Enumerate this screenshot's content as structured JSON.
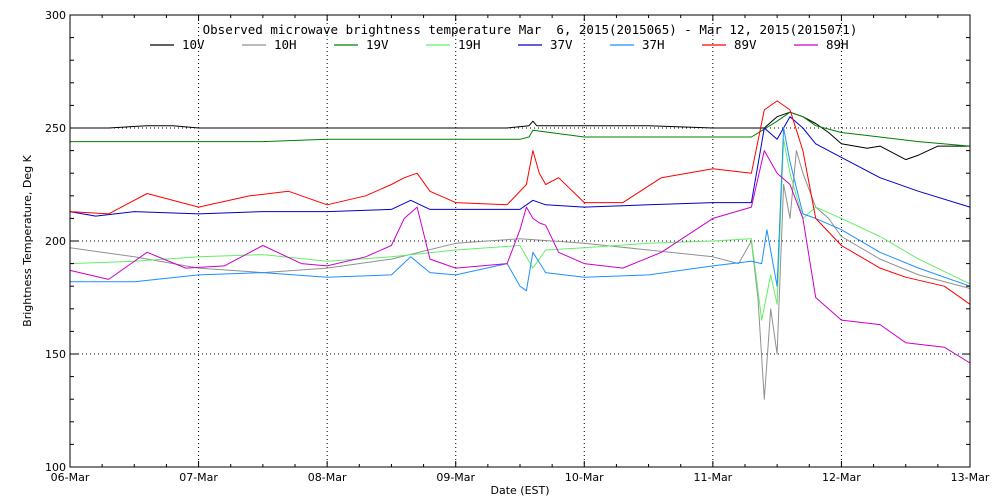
{
  "chart_data": {
    "type": "line",
    "title": "Observed microwave brightness temperature Mar  6, 2015(2015065) - Mar 12, 2015(2015071)",
    "xlabel": "Date (EST)",
    "ylabel": "Brightness Temperature, Deg K",
    "xlim": [
      0,
      7
    ],
    "ylim": [
      100,
      300
    ],
    "grid": true,
    "legend_position": "top",
    "xticks": [
      {
        "value": 0,
        "label": "06-Mar"
      },
      {
        "value": 1,
        "label": "07-Mar"
      },
      {
        "value": 2,
        "label": "08-Mar"
      },
      {
        "value": 3,
        "label": "09-Mar"
      },
      {
        "value": 4,
        "label": "10-Mar"
      },
      {
        "value": 5,
        "label": "11-Mar"
      },
      {
        "value": 6,
        "label": "12-Mar"
      },
      {
        "value": 7,
        "label": "13-Mar"
      }
    ],
    "yticks": [
      {
        "value": 100,
        "label": "100"
      },
      {
        "value": 150,
        "label": "150"
      },
      {
        "value": 200,
        "label": "200"
      },
      {
        "value": 250,
        "label": "250"
      },
      {
        "value": 300,
        "label": "300"
      }
    ],
    "series": [
      {
        "name": "10V",
        "color": "#000000",
        "x": [
          0,
          0.3,
          0.6,
          0.8,
          1.0,
          1.5,
          2.0,
          2.5,
          3.0,
          3.4,
          3.57,
          3.6,
          3.63,
          4.0,
          4.5,
          5.0,
          5.3,
          5.4,
          5.5,
          5.6,
          5.7,
          5.8,
          5.9,
          6.0,
          6.2,
          6.3,
          6.5,
          6.6,
          6.75,
          7.0
        ],
        "y": [
          250,
          250,
          251,
          251,
          250,
          250,
          250,
          250,
          250,
          250,
          251,
          253,
          251,
          251,
          251,
          250,
          250,
          250,
          255,
          257,
          255,
          252,
          248,
          243,
          241,
          242,
          236,
          238,
          242,
          242
        ]
      },
      {
        "name": "10H",
        "color": "#909090",
        "x": [
          0,
          0.5,
          1.0,
          1.5,
          2.0,
          2.5,
          3.0,
          3.5,
          4.0,
          4.5,
          5.0,
          5.2,
          5.3,
          5.35,
          5.4,
          5.45,
          5.5,
          5.55,
          5.6,
          5.65,
          5.7,
          5.8,
          5.9,
          6.0,
          6.3,
          6.6,
          7.0
        ],
        "y": [
          197,
          193,
          188,
          186,
          188,
          192,
          199,
          201,
          199,
          196,
          193,
          190,
          200,
          175,
          130,
          170,
          150,
          225,
          210,
          240,
          230,
          215,
          210,
          202,
          192,
          185,
          179
        ]
      },
      {
        "name": "19V",
        "color": "#008000",
        "x": [
          0,
          0.5,
          1.0,
          1.5,
          2.0,
          2.5,
          3.0,
          3.5,
          3.57,
          3.6,
          4.0,
          4.5,
          5.0,
          5.3,
          5.5,
          5.6,
          5.7,
          5.8,
          6.0,
          6.3,
          6.6,
          7.0
        ],
        "y": [
          244,
          244,
          244,
          244,
          245,
          245,
          245,
          245,
          246,
          249,
          246,
          246,
          246,
          246,
          253,
          257,
          255,
          251,
          248,
          246,
          244,
          242
        ]
      },
      {
        "name": "19H",
        "color": "#66ee66",
        "x": [
          0,
          0.5,
          1.0,
          1.5,
          2.0,
          2.5,
          3.0,
          3.5,
          3.6,
          3.7,
          4.0,
          4.5,
          5.0,
          5.3,
          5.38,
          5.45,
          5.5,
          5.55,
          5.6,
          5.7,
          5.8,
          6.0,
          6.3,
          6.6,
          7.0
        ],
        "y": [
          190,
          191,
          193,
          194,
          191,
          193,
          196,
          198,
          188,
          196,
          197,
          199,
          200,
          201,
          165,
          185,
          172,
          245,
          230,
          210,
          215,
          210,
          202,
          192,
          181
        ]
      },
      {
        "name": "37V",
        "color": "#0000cc",
        "x": [
          0,
          0.2,
          0.5,
          1.0,
          1.5,
          2.0,
          2.5,
          2.65,
          2.8,
          3.0,
          3.5,
          3.6,
          3.7,
          4.0,
          4.5,
          5.0,
          5.3,
          5.4,
          5.5,
          5.6,
          5.7,
          5.8,
          6.0,
          6.3,
          6.6,
          7.0
        ],
        "y": [
          213,
          211,
          213,
          212,
          213,
          213,
          214,
          218,
          214,
          214,
          214,
          218,
          216,
          215,
          216,
          217,
          217,
          250,
          245,
          255,
          250,
          243,
          237,
          228,
          222,
          215
        ]
      },
      {
        "name": "37H",
        "color": "#1e90ff",
        "x": [
          0,
          0.5,
          1.0,
          1.5,
          2.0,
          2.5,
          2.65,
          2.8,
          3.0,
          3.4,
          3.5,
          3.55,
          3.6,
          3.7,
          4.0,
          4.5,
          5.0,
          5.3,
          5.38,
          5.42,
          5.5,
          5.55,
          5.6,
          5.7,
          5.8,
          6.0,
          6.3,
          6.6,
          7.0
        ],
        "y": [
          182,
          182,
          185,
          186,
          184,
          185,
          193,
          186,
          185,
          190,
          180,
          178,
          195,
          186,
          184,
          185,
          189,
          191,
          190,
          205,
          180,
          250,
          235,
          212,
          210,
          205,
          195,
          188,
          180
        ]
      },
      {
        "name": "89V",
        "color": "#ff0000",
        "x": [
          0,
          0.3,
          0.6,
          1.0,
          1.4,
          1.7,
          2.0,
          2.3,
          2.5,
          2.6,
          2.7,
          2.8,
          3.0,
          3.4,
          3.55,
          3.6,
          3.65,
          3.7,
          3.8,
          4.0,
          4.3,
          4.6,
          5.0,
          5.3,
          5.4,
          5.5,
          5.6,
          5.7,
          5.8,
          6.0,
          6.3,
          6.5,
          6.8,
          7.0
        ],
        "y": [
          213,
          212,
          221,
          215,
          220,
          222,
          216,
          220,
          225,
          228,
          230,
          222,
          217,
          216,
          225,
          240,
          230,
          225,
          228,
          217,
          217,
          228,
          232,
          230,
          258,
          262,
          258,
          240,
          210,
          198,
          188,
          184,
          180,
          172
        ]
      },
      {
        "name": "89H",
        "color": "#cc00cc",
        "x": [
          0,
          0.3,
          0.6,
          0.9,
          1.2,
          1.5,
          1.8,
          2.0,
          2.3,
          2.5,
          2.6,
          2.7,
          2.8,
          3.0,
          3.4,
          3.5,
          3.55,
          3.6,
          3.65,
          3.7,
          3.8,
          4.0,
          4.3,
          4.6,
          5.0,
          5.3,
          5.4,
          5.5,
          5.6,
          5.7,
          5.8,
          6.0,
          6.3,
          6.5,
          6.8,
          7.0
        ],
        "y": [
          187,
          183,
          195,
          188,
          189,
          198,
          190,
          189,
          193,
          198,
          210,
          215,
          192,
          188,
          190,
          205,
          215,
          210,
          208,
          207,
          195,
          190,
          188,
          195,
          210,
          215,
          240,
          230,
          225,
          210,
          175,
          165,
          163,
          155,
          153,
          146
        ]
      }
    ]
  }
}
